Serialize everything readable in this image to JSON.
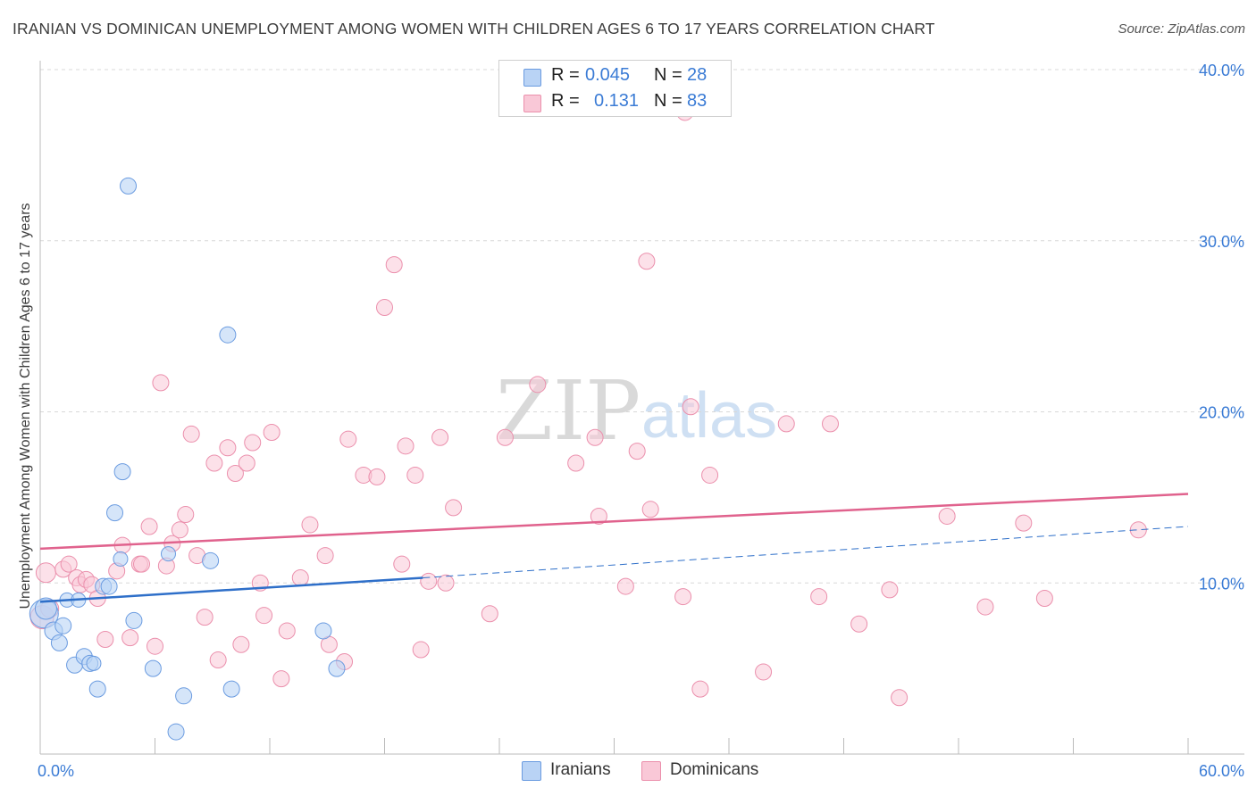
{
  "header": {
    "title": "IRANIAN VS DOMINICAN UNEMPLOYMENT AMONG WOMEN WITH CHILDREN AGES 6 TO 17 YEARS CORRELATION CHART",
    "source": "Source: ZipAtlas.com"
  },
  "watermark": {
    "zip": "ZIP",
    "atlas": "atlas"
  },
  "legend": {
    "rows": [
      {
        "r_label": "R =",
        "r_value": "0.045",
        "n_label": "N =",
        "n_value": "28"
      },
      {
        "r_label": "R =",
        "r_value": "0.131",
        "n_label": "N =",
        "n_value": "83"
      }
    ]
  },
  "bottom_legend": {
    "iranians": "Iranians",
    "dominicans": "Dominicans"
  },
  "colors": {
    "iranians_fill": "#b9d3f5",
    "iranians_stroke": "#6a9be0",
    "iranians_line": "#2e6fc9",
    "dominicans_fill": "#f9c8d7",
    "dominicans_stroke": "#eb8fac",
    "dominicans_line": "#e0628d",
    "axis_label": "#3a7bd5",
    "grid": "#d8d8d8"
  },
  "chart_data": {
    "type": "scatter",
    "title": "IRANIAN VS DOMINICAN UNEMPLOYMENT AMONG WOMEN WITH CHILDREN AGES 6 TO 17 YEARS CORRELATION CHART",
    "xlabel": "",
    "ylabel": "Unemployment Among Women with Children Ages 6 to 17 years",
    "xlim": [
      0,
      60
    ],
    "ylim": [
      0,
      40
    ],
    "x_tick_labels": [
      "0.0%",
      "60.0%"
    ],
    "y_ticks": [
      10,
      20,
      30,
      40
    ],
    "y_tick_labels": [
      "10.0%",
      "20.0%",
      "30.0%",
      "40.0%"
    ],
    "grid": true,
    "series": [
      {
        "name": "Iranians",
        "r": 0.045,
        "n": 28,
        "trend": {
          "solid": [
            [
              0,
              8.9
            ],
            [
              20,
              10.3
            ]
          ],
          "dashed": [
            [
              20,
              10.3
            ],
            [
              60,
              13.3
            ]
          ]
        },
        "points": [
          [
            0.2,
            8.2,
            16
          ],
          [
            0.3,
            8.5,
            12
          ],
          [
            0.7,
            7.2,
            10
          ],
          [
            1.0,
            6.5,
            9
          ],
          [
            1.2,
            7.5,
            9
          ],
          [
            1.4,
            9.0,
            8
          ],
          [
            1.8,
            5.2,
            9
          ],
          [
            2.0,
            9.0,
            8
          ],
          [
            2.3,
            5.7,
            9
          ],
          [
            2.6,
            5.3,
            9
          ],
          [
            2.8,
            5.3,
            8
          ],
          [
            3.0,
            3.8,
            9
          ],
          [
            3.3,
            9.8,
            9
          ],
          [
            3.6,
            9.8,
            9
          ],
          [
            3.9,
            14.1,
            9
          ],
          [
            4.2,
            11.4,
            8
          ],
          [
            4.3,
            16.5,
            9
          ],
          [
            4.6,
            33.2,
            9
          ],
          [
            4.9,
            7.8,
            9
          ],
          [
            5.9,
            5.0,
            9
          ],
          [
            7.1,
            1.3,
            9
          ],
          [
            6.7,
            11.7,
            8
          ],
          [
            7.5,
            3.4,
            9
          ],
          [
            8.9,
            11.3,
            9
          ],
          [
            9.8,
            24.5,
            9
          ],
          [
            10.0,
            3.8,
            9
          ],
          [
            14.8,
            7.2,
            9
          ],
          [
            15.5,
            5.0,
            9
          ]
        ]
      },
      {
        "name": "Dominicans",
        "r": 0.131,
        "n": 83,
        "trend": {
          "solid": [
            [
              0,
              12.0
            ],
            [
              60,
              15.2
            ]
          ]
        },
        "points": [
          [
            0.1,
            8.0,
            13
          ],
          [
            0.3,
            10.6,
            11
          ],
          [
            0.5,
            8.5,
            10
          ],
          [
            1.2,
            10.8,
            9
          ],
          [
            1.5,
            11.1,
            9
          ],
          [
            1.9,
            10.3,
            9
          ],
          [
            2.1,
            9.9,
            9
          ],
          [
            2.4,
            10.2,
            9
          ],
          [
            2.7,
            9.9,
            9
          ],
          [
            3.0,
            9.1,
            9
          ],
          [
            3.4,
            6.7,
            9
          ],
          [
            4.0,
            10.7,
            9
          ],
          [
            4.3,
            12.2,
            9
          ],
          [
            4.7,
            6.8,
            9
          ],
          [
            5.2,
            11.1,
            9
          ],
          [
            5.3,
            11.1,
            9
          ],
          [
            5.7,
            13.3,
            9
          ],
          [
            6.0,
            6.3,
            9
          ],
          [
            6.3,
            21.7,
            9
          ],
          [
            6.6,
            11.0,
            9
          ],
          [
            6.9,
            12.3,
            9
          ],
          [
            7.3,
            13.1,
            9
          ],
          [
            7.6,
            14.0,
            9
          ],
          [
            7.9,
            18.7,
            9
          ],
          [
            8.2,
            11.6,
            9
          ],
          [
            8.6,
            8.0,
            9
          ],
          [
            9.1,
            17.0,
            9
          ],
          [
            9.3,
            5.5,
            9
          ],
          [
            9.8,
            17.9,
            9
          ],
          [
            10.2,
            16.4,
            9
          ],
          [
            10.5,
            6.4,
            9
          ],
          [
            10.8,
            17.0,
            9
          ],
          [
            11.1,
            18.2,
            9
          ],
          [
            11.5,
            10.0,
            9
          ],
          [
            11.7,
            8.1,
            9
          ],
          [
            12.1,
            18.8,
            9
          ],
          [
            12.6,
            4.4,
            9
          ],
          [
            12.9,
            7.2,
            9
          ],
          [
            13.6,
            10.3,
            9
          ],
          [
            14.1,
            13.4,
            9
          ],
          [
            14.9,
            11.6,
            9
          ],
          [
            15.1,
            6.4,
            9
          ],
          [
            15.9,
            5.4,
            9
          ],
          [
            16.1,
            18.4,
            9
          ],
          [
            16.9,
            16.3,
            9
          ],
          [
            17.6,
            16.2,
            9
          ],
          [
            18.0,
            26.1,
            9
          ],
          [
            18.5,
            28.6,
            9
          ],
          [
            18.9,
            11.1,
            9
          ],
          [
            19.1,
            18.0,
            9
          ],
          [
            19.6,
            16.3,
            9
          ],
          [
            19.9,
            6.1,
            9
          ],
          [
            20.3,
            10.1,
            9
          ],
          [
            20.9,
            18.5,
            9
          ],
          [
            21.2,
            10.0,
            9
          ],
          [
            21.6,
            14.4,
            9
          ],
          [
            23.5,
            8.2,
            9
          ],
          [
            24.3,
            18.5,
            9
          ],
          [
            26.0,
            21.6,
            9
          ],
          [
            28.0,
            17.0,
            9
          ],
          [
            29.0,
            18.5,
            9
          ],
          [
            29.2,
            13.9,
            9
          ],
          [
            30.6,
            9.8,
            9
          ],
          [
            31.2,
            17.7,
            9
          ],
          [
            31.7,
            28.8,
            9
          ],
          [
            31.9,
            14.3,
            9
          ],
          [
            33.6,
            9.2,
            9
          ],
          [
            33.7,
            37.5,
            9
          ],
          [
            34.0,
            20.3,
            9
          ],
          [
            34.5,
            3.8,
            9
          ],
          [
            35.0,
            16.3,
            9
          ],
          [
            37.8,
            4.8,
            9
          ],
          [
            39.0,
            19.3,
            9
          ],
          [
            40.7,
            9.2,
            9
          ],
          [
            41.3,
            19.3,
            9
          ],
          [
            42.8,
            7.6,
            9
          ],
          [
            44.4,
            9.6,
            9
          ],
          [
            44.9,
            3.3,
            9
          ],
          [
            47.4,
            13.9,
            9
          ],
          [
            49.4,
            8.6,
            9
          ],
          [
            51.4,
            13.5,
            9
          ],
          [
            52.5,
            9.1,
            9
          ],
          [
            57.4,
            13.1,
            9
          ]
        ]
      }
    ]
  }
}
